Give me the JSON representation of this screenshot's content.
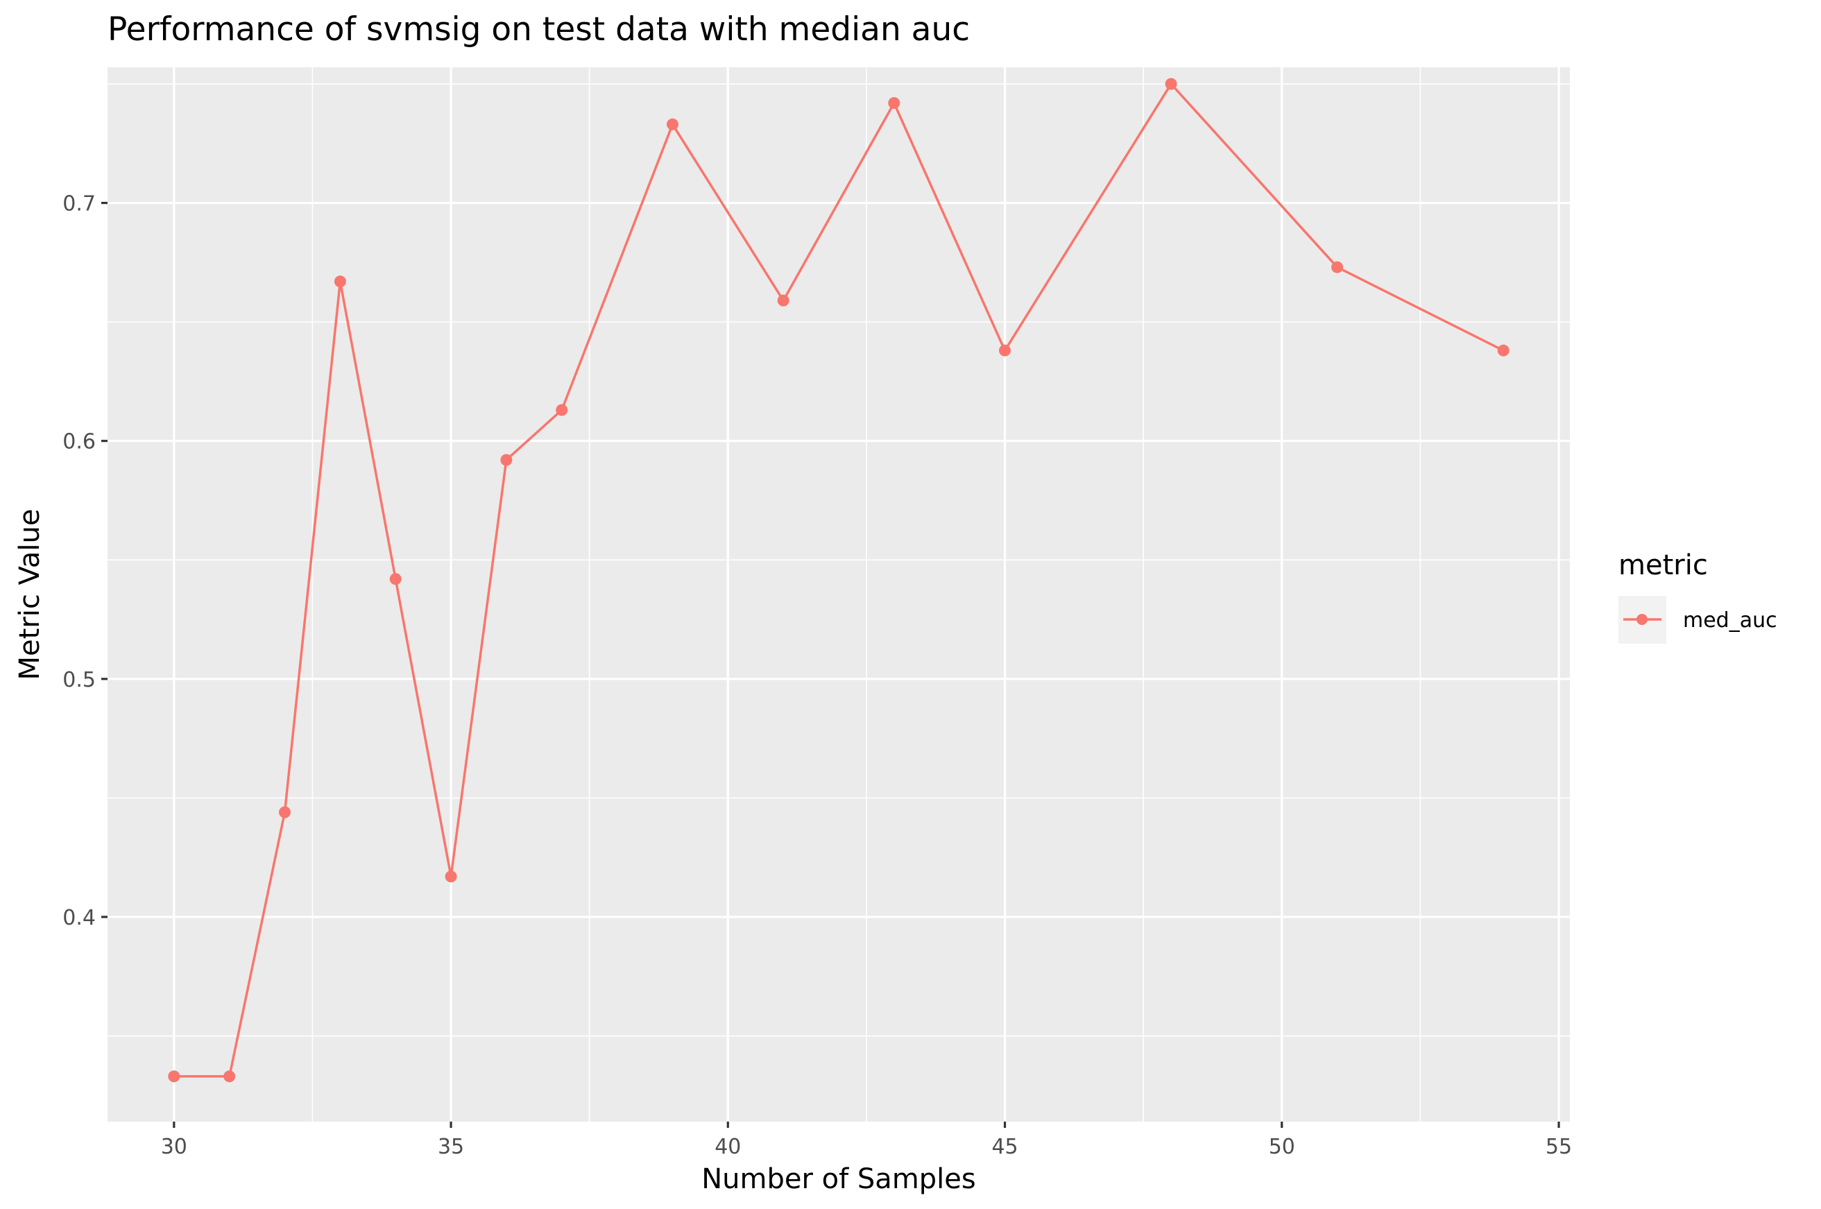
{
  "chart_data": {
    "type": "line",
    "title": "Performance of svmsig on test data with median auc",
    "xlabel": "Number of Samples",
    "ylabel": "Metric Value",
    "xlim": [
      28.8,
      55.2
    ],
    "ylim": [
      0.314,
      0.757
    ],
    "x_ticks": [
      30,
      35,
      40,
      45,
      50,
      55
    ],
    "x_tick_labels": [
      "30",
      "35",
      "40",
      "45",
      "50",
      "55"
    ],
    "x_minor_ticks": [
      32.5,
      37.5,
      42.5,
      47.5,
      52.5
    ],
    "y_ticks": [
      0.4,
      0.5,
      0.6,
      0.7
    ],
    "y_tick_labels": [
      "0.4",
      "0.5",
      "0.6",
      "0.7"
    ],
    "y_minor_ticks": [
      0.35,
      0.45,
      0.55,
      0.65,
      0.75
    ],
    "grid": true,
    "legend": {
      "title": "metric",
      "position": "right"
    },
    "series": [
      {
        "name": "med_auc",
        "color": "#F8766D",
        "x": [
          30,
          31,
          32,
          33,
          34,
          35,
          36,
          37,
          39,
          41,
          43,
          45,
          48,
          51,
          54
        ],
        "values": [
          0.333,
          0.333,
          0.444,
          0.667,
          0.542,
          0.417,
          0.592,
          0.613,
          0.733,
          0.659,
          0.742,
          0.638,
          0.75,
          0.673,
          0.638
        ]
      }
    ]
  },
  "colors": {
    "panel_background": "#EBEBEB",
    "grid": "#FFFFFF",
    "legend_key_background": "#F2F2F2"
  }
}
